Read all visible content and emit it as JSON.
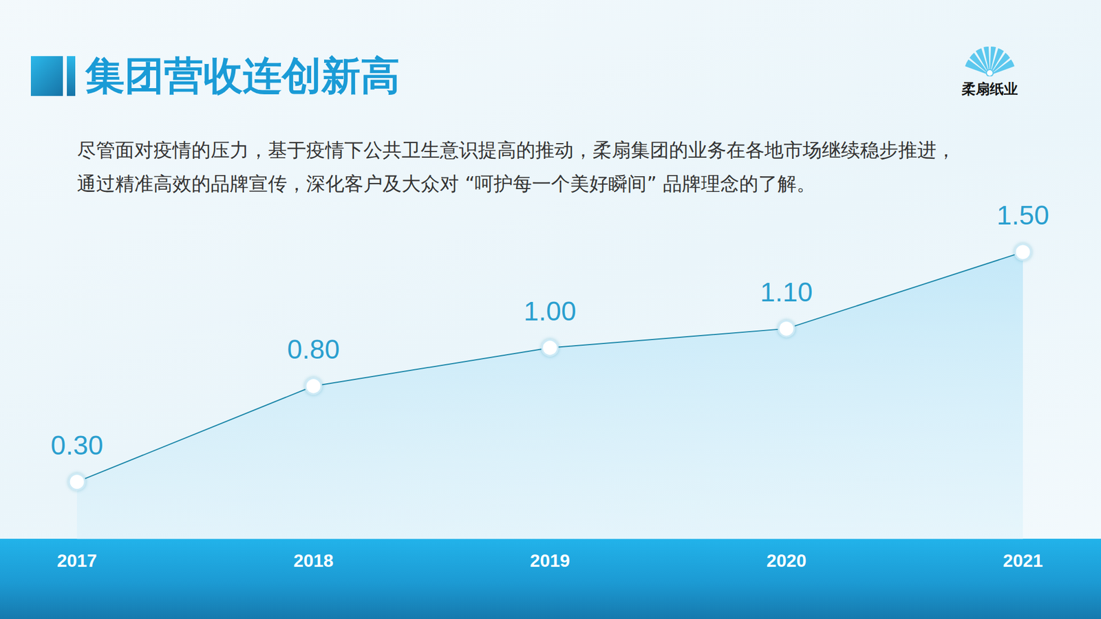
{
  "title": "集团营收连创新高",
  "paragraph": [
    "尽管面对疫情的压力，基于疫情下公共卫生意识提高的推动，柔扇集团的业务在各地市场继续稳步推进，",
    "通过精准高效的品牌宣传，深化客户及大众对 “呵护每一个美好瞬间” 品牌理念的了解。"
  ],
  "logo": "柔扇纸业",
  "chart_data": {
    "type": "line",
    "categories": [
      "2017",
      "2018",
      "2019",
      "2020",
      "2021"
    ],
    "values": [
      0.3,
      0.8,
      1.0,
      1.1,
      1.5
    ],
    "value_labels": [
      "0.30",
      "0.80",
      "1.00",
      "1.10",
      "1.50"
    ],
    "data_labels": true,
    "color": "#1a86a8",
    "marker": "circle",
    "ylim": [
      0,
      1.6
    ],
    "yticks": [
      0,
      1.6
    ],
    "tick_labels": "x",
    "grid": false
  }
}
